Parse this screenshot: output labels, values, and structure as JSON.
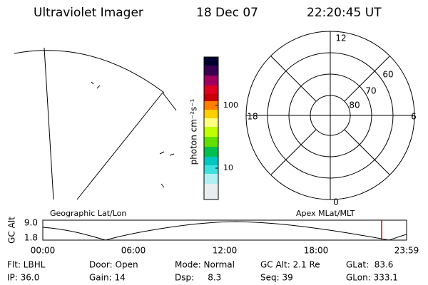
{
  "header": {
    "title": "Ultraviolet Imager",
    "date": "18 Dec 07",
    "time": "22:20:45 UT"
  },
  "colorbar": {
    "label": "photon cm⁻²s⁻¹",
    "ticks": [
      "100",
      "10"
    ]
  },
  "polar": {
    "mlt_labels": [
      "12",
      "18",
      "6",
      "0"
    ],
    "lat_labels": [
      "60",
      "70",
      "80"
    ]
  },
  "panels": {
    "left": "Geographic Lat/Lon",
    "right": "Apex MLat/MLT"
  },
  "altitude": {
    "axis_title": "GC Alt",
    "yticks": [
      "9.0",
      "1.8"
    ],
    "xticks": [
      "00:00",
      "06:00",
      "12:00",
      "18:00",
      "23:59"
    ]
  },
  "status": {
    "rows": [
      [
        "Flt: LBHL",
        "Door: Open",
        "Mode: Normal",
        "GC Alt: 2.1 Re",
        "GLat:  83.6"
      ],
      [
        "IP: 36.0",
        "Gain: 14",
        "Dsp:     8.3",
        "Seq: 39",
        "GLon: 333.1"
      ]
    ]
  }
}
